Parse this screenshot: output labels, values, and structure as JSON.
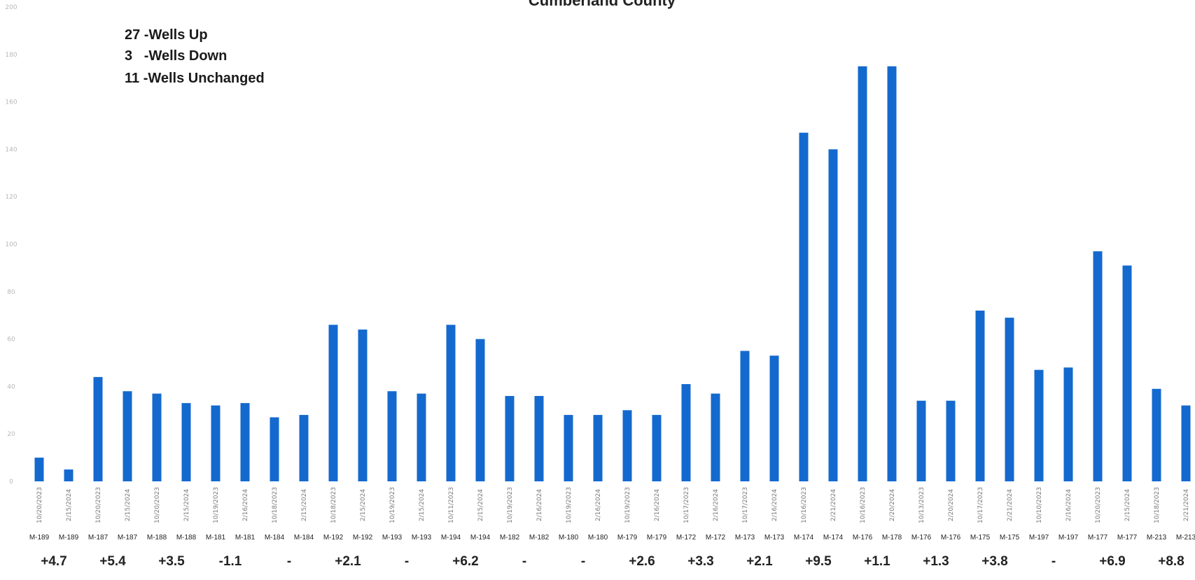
{
  "chart_data": {
    "type": "bar",
    "title": "Cumberland County",
    "ylim": [
      0,
      200
    ],
    "yticks": [
      "0",
      "20",
      "40",
      "60",
      "80",
      "100",
      "120",
      "140",
      "160",
      "180",
      "200"
    ],
    "categories": [
      "10/20/2023",
      "2/15/2024",
      "10/20/2023",
      "2/15/2024",
      "10/20/2023",
      "2/15/2024",
      "10/19/2023",
      "2/16/2024",
      "10/18/2023",
      "2/15/2024",
      "10/18/2023",
      "2/15/2024",
      "10/19/2023",
      "2/15/2024",
      "10/11/2023",
      "2/15/2024",
      "10/19/2023",
      "2/16/2024",
      "10/19/2023",
      "2/16/2024",
      "10/19/2023",
      "2/16/2024",
      "10/17/2023",
      "2/16/2024",
      "10/17/2023",
      "2/16/2024",
      "10/16/2023",
      "2/21/2024",
      "10/16/2023",
      "2/20/2024",
      "10/13/2023",
      "2/20/2024",
      "10/17/2023",
      "2/21/2024",
      "10/10/2023",
      "2/16/2024",
      "10/20/2023",
      "2/15/2024",
      "10/18/2023",
      "2/21/2024"
    ],
    "wells": [
      "M-189",
      "M-189",
      "M-187",
      "M-187",
      "M-188",
      "M-188",
      "M-181",
      "M-181",
      "M-184",
      "M-184",
      "M-192",
      "M-192",
      "M-193",
      "M-193",
      "M-194",
      "M-194",
      "M-182",
      "M-182",
      "M-180",
      "M-180",
      "M-179",
      "M-179",
      "M-172",
      "M-172",
      "M-173",
      "M-173",
      "M-174",
      "M-174",
      "M-176",
      "M-178",
      "M-176",
      "M-176",
      "M-175",
      "M-175",
      "M-197",
      "M-197",
      "M-177",
      "M-177",
      "M-213",
      "M-213"
    ],
    "series": [
      {
        "values": [
          10,
          5,
          44,
          38,
          37,
          33,
          32,
          33,
          27,
          28,
          66,
          64,
          38,
          37,
          66,
          60,
          36,
          36,
          28,
          28,
          30,
          28,
          41,
          37,
          55,
          53,
          147,
          140,
          175,
          175,
          34,
          34,
          72,
          69,
          47,
          48,
          97,
          91,
          39,
          32
        ],
        "color": "#1469cf"
      }
    ],
    "changes": [
      "+4.7",
      "+5.4",
      "+3.5",
      "-1.1",
      "-",
      "+2.1",
      "-",
      "+6.2",
      "-",
      "-",
      "+2.6",
      "+3.3",
      "+2.1",
      "+9.5",
      "+1.1",
      "+1.3",
      "+3.8",
      "-",
      "+6.9",
      "+8.8"
    ],
    "legend": {
      "position": "top-left",
      "lines": [
        "27 -Wells Up",
        "3   -Wells Down",
        "11 -Wells Unchanged"
      ]
    },
    "grid": false
  }
}
